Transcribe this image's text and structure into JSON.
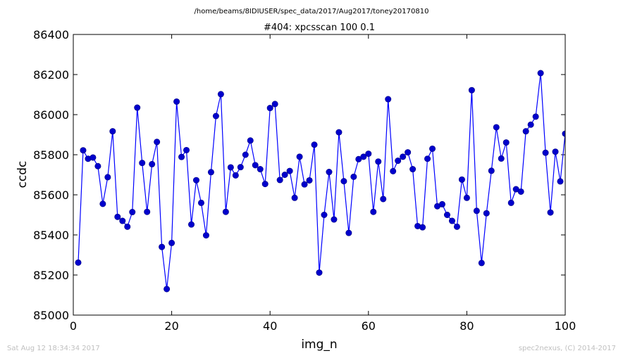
{
  "suptitle": "/home/beams/8IDIUSER/spec_data/2017/Aug2017/toney20170810",
  "footer": {
    "left": "Sat Aug 12 18:34:34 2017",
    "right": "spec2nexus, (C) 2014-2017"
  },
  "chart_data": {
    "type": "line",
    "title": "#404: xpcsscan 100 0.1",
    "xlabel": "img_n",
    "ylabel": "ccdc",
    "xlim": [
      0,
      100
    ],
    "ylim": [
      85000,
      86400
    ],
    "xticks": [
      0,
      20,
      40,
      60,
      80,
      100
    ],
    "yticks": [
      85000,
      85200,
      85400,
      85600,
      85800,
      86000,
      86200,
      86400
    ],
    "grid": false,
    "marker": "circle",
    "color": "#0000ff",
    "series": [
      {
        "x": [
          1,
          2,
          3,
          4,
          5,
          6,
          7,
          8,
          9,
          10,
          11,
          12,
          13,
          14,
          15,
          16,
          17,
          18,
          19,
          20,
          21,
          22,
          23,
          24,
          25,
          26,
          27,
          28,
          29,
          30,
          31,
          32,
          33,
          34,
          35,
          36,
          37,
          38,
          39,
          40,
          41,
          42,
          43,
          44,
          45,
          46,
          47,
          48,
          49,
          50,
          51,
          52,
          53,
          54,
          55,
          56,
          57,
          58,
          59,
          60,
          61,
          62,
          63,
          64,
          65,
          66,
          67,
          68,
          69,
          70,
          71,
          72,
          73,
          74,
          75,
          76,
          77,
          78,
          79,
          80,
          81,
          82,
          83,
          84,
          85,
          86,
          87,
          88,
          89,
          90,
          91,
          92,
          93,
          94,
          95,
          96,
          97,
          98,
          99,
          100
        ],
        "y": [
          85262,
          85822,
          85780,
          85786,
          85743,
          85555,
          85688,
          85917,
          85490,
          85470,
          85441,
          85514,
          86035,
          85759,
          85515,
          85753,
          85864,
          85340,
          85130,
          85360,
          86065,
          85789,
          85823,
          85452,
          85673,
          85560,
          85398,
          85713,
          85993,
          86102,
          85515,
          85737,
          85697,
          85738,
          85800,
          85871,
          85748,
          85728,
          85654,
          86033,
          86053,
          85674,
          85700,
          85719,
          85585,
          85790,
          85652,
          85672,
          85850,
          85212,
          85500,
          85714,
          85477,
          85912,
          85668,
          85410,
          85690,
          85778,
          85790,
          85805,
          85515,
          85766,
          85579,
          86077,
          85718,
          85770,
          85790,
          85812,
          85728,
          85444,
          85438,
          85780,
          85830,
          85543,
          85553,
          85500,
          85470,
          85441,
          85676,
          85585,
          86122,
          85520,
          85260,
          85508,
          85720,
          85937,
          85781,
          85861,
          85560,
          85628,
          85616,
          85917,
          85950,
          85990,
          86207,
          85810,
          85512,
          85815,
          85667,
          85905
        ]
      }
    ]
  }
}
